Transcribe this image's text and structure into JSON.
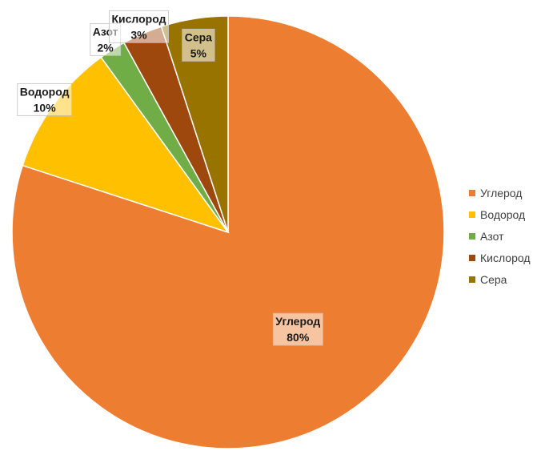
{
  "chart_data": {
    "type": "pie",
    "title": "",
    "categories": [
      "Углерод",
      "Водород",
      "Азот",
      "Кислород",
      "Сера"
    ],
    "values": [
      80,
      10,
      2,
      3,
      5
    ],
    "value_labels": [
      "80%",
      "10%",
      "2%",
      "3%",
      "5%"
    ],
    "colors": [
      "#ED7D31",
      "#FFC000",
      "#70AD47",
      "#9E480E",
      "#997300"
    ],
    "legend_position": "right",
    "data_labels": "category-and-percent"
  }
}
